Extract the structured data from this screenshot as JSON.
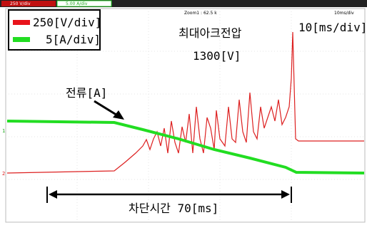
{
  "header": {
    "ch1": "250 V/div",
    "ch2": "5.00 A/div",
    "zoom": "Zoom1 : 62.5 k",
    "timebase": "10ms/div"
  },
  "legend": {
    "items": [
      {
        "label": "250[V/div]",
        "color": "#e8131b"
      },
      {
        "label": "5[A/div]",
        "color": "#22dd22"
      }
    ]
  },
  "annotations": {
    "timebase": "10[ms/div]",
    "peak_title": "최대아크전압",
    "peak_value": "1300[V]",
    "current": "전류[A]",
    "interrupt": "차단시간 70[ms]"
  }
}
